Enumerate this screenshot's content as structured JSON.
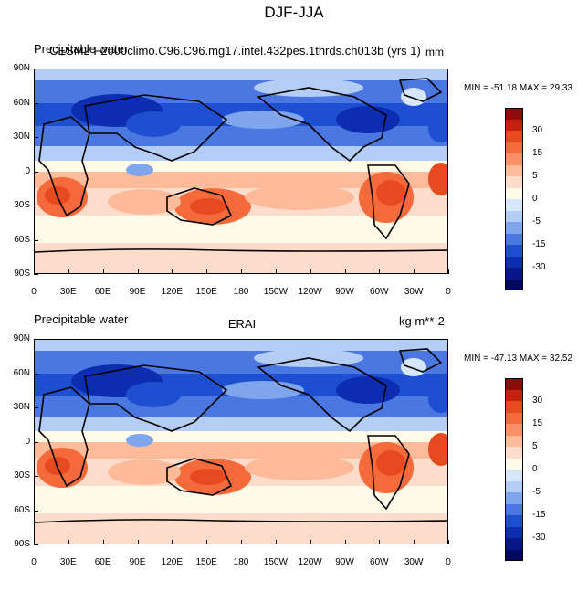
{
  "title": "DJF-JJA",
  "colorbar_labels": [
    "30",
    "15",
    "5",
    "0",
    "-5",
    "-15",
    "-30"
  ],
  "colorbar_colors": [
    "#8e0b0b",
    "#c4210e",
    "#e64a1e",
    "#f56a3a",
    "#fa9166",
    "#fdbb9a",
    "#fddccb",
    "#fffbe8",
    "#d6e7fb",
    "#b3cdf5",
    "#7fa5ec",
    "#4a78e0",
    "#1f4fd1",
    "#0c2db0",
    "#06178a",
    "#020a60"
  ],
  "lat_labels": [
    "90N",
    "60N",
    "30N",
    "0",
    "30S",
    "60S",
    "90S"
  ],
  "lon_labels": [
    "0",
    "30E",
    "60E",
    "90E",
    "120E",
    "150E",
    "180",
    "150W",
    "120W",
    "90W",
    "60W",
    "30W",
    "0"
  ],
  "panels": [
    {
      "id": "top",
      "left_title": "Precipitable water",
      "overlay_title": "CESM2 F2000climo.C96.C96.mg17.intel.432pes.1thrds.ch013b (yrs 1)",
      "units": "mm",
      "stats": "MIN = -51.18 MAX =  29.33"
    },
    {
      "id": "bottom",
      "left_title": "Precipitable water",
      "center_title": "ERAI",
      "units": "kg m**-2",
      "stats": "MIN = -47.13 MAX =  32.52"
    }
  ]
}
